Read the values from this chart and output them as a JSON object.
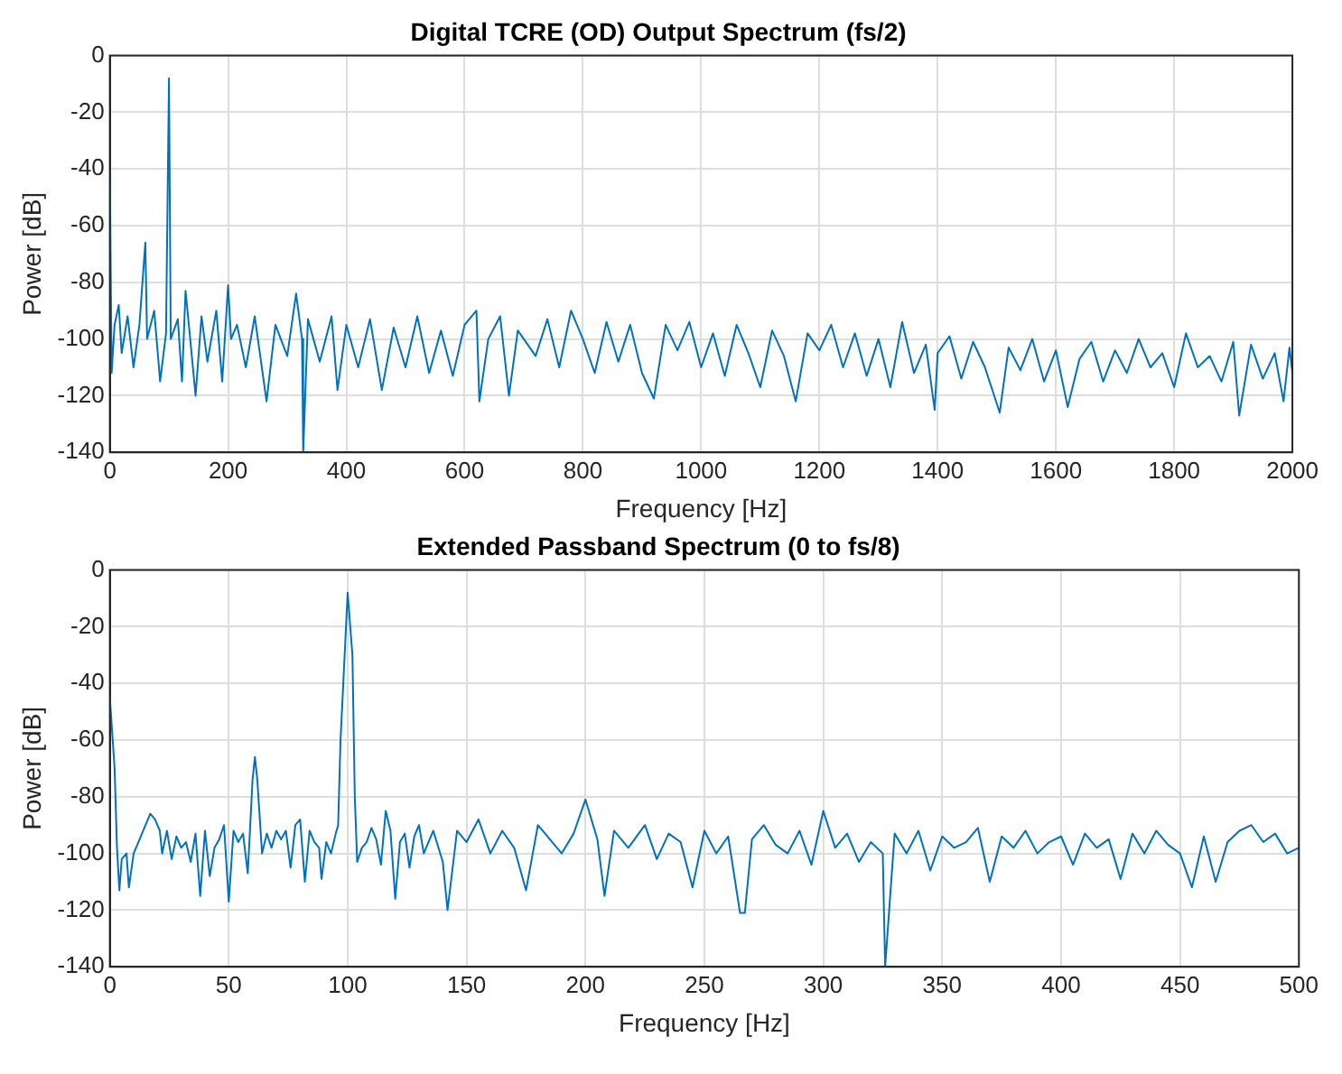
{
  "chart_data": [
    {
      "type": "line",
      "title": "Digital TCRE (OD) Output Spectrum (fs/2)",
      "xlabel": "Frequency [Hz]",
      "ylabel": "Power [dB]",
      "xlim": [
        0,
        2000
      ],
      "ylim": [
        -140,
        0
      ],
      "xticks": [
        0,
        200,
        400,
        600,
        800,
        1000,
        1200,
        1400,
        1600,
        1800,
        2000
      ],
      "yticks": [
        -140,
        -120,
        -100,
        -80,
        -60,
        -40,
        -20,
        0
      ],
      "grid": true,
      "legend": false,
      "marker": "none",
      "line_style": "solid",
      "x": [
        0,
        3,
        8,
        15,
        20,
        30,
        40,
        50,
        60,
        63,
        75,
        85,
        95,
        100,
        103,
        115,
        122,
        128,
        135,
        145,
        155,
        165,
        180,
        190,
        200,
        205,
        215,
        230,
        245,
        265,
        280,
        300,
        315,
        325,
        327,
        335,
        355,
        375,
        385,
        400,
        420,
        440,
        460,
        480,
        500,
        520,
        540,
        560,
        580,
        600,
        620,
        625,
        640,
        660,
        675,
        690,
        720,
        740,
        760,
        780,
        800,
        820,
        840,
        860,
        880,
        900,
        920,
        940,
        960,
        980,
        1000,
        1020,
        1040,
        1060,
        1080,
        1100,
        1120,
        1140,
        1160,
        1180,
        1200,
        1220,
        1240,
        1260,
        1280,
        1300,
        1320,
        1340,
        1360,
        1380,
        1395,
        1400,
        1420,
        1440,
        1460,
        1480,
        1505,
        1520,
        1540,
        1560,
        1580,
        1600,
        1620,
        1640,
        1660,
        1680,
        1700,
        1720,
        1740,
        1760,
        1780,
        1800,
        1820,
        1840,
        1860,
        1880,
        1900,
        1910,
        1930,
        1950,
        1970,
        1985,
        1995,
        2000
      ],
      "series": [
        {
          "color": "#0072bd",
          "values": [
            -40,
            -112,
            -95,
            -88,
            -105,
            -92,
            -110,
            -95,
            -66,
            -100,
            -90,
            -115,
            -98,
            -8,
            -100,
            -93,
            -115,
            -83,
            -98,
            -120,
            -92,
            -108,
            -90,
            -115,
            -81,
            -100,
            -95,
            -110,
            -92,
            -122,
            -95,
            -106,
            -84,
            -100,
            -140,
            -93,
            -108,
            -92,
            -118,
            -95,
            -110,
            -93,
            -118,
            -96,
            -110,
            -92,
            -112,
            -97,
            -113,
            -95,
            -90,
            -122,
            -100,
            -92,
            -120,
            -97,
            -106,
            -93,
            -110,
            -90,
            -100,
            -112,
            -94,
            -108,
            -95,
            -112,
            -121,
            -95,
            -104,
            -94,
            -110,
            -98,
            -113,
            -95,
            -105,
            -117,
            -97,
            -106,
            -122,
            -98,
            -104,
            -95,
            -110,
            -98,
            -113,
            -100,
            -117,
            -94,
            -112,
            -102,
            -125,
            -105,
            -99,
            -114,
            -101,
            -110,
            -126,
            -103,
            -111,
            -100,
            -115,
            -104,
            -124,
            -107,
            -101,
            -115,
            -104,
            -112,
            -100,
            -110,
            -105,
            -117,
            -98,
            -110,
            -106,
            -115,
            -101,
            -127,
            -102,
            -114,
            -105,
            -122,
            -103,
            -112
          ]
        }
      ]
    },
    {
      "type": "line",
      "title": "Extended Passband Spectrum (0 to fs/8)",
      "xlabel": "Frequency [Hz]",
      "ylabel": "Power [dB]",
      "xlim": [
        0,
        500
      ],
      "ylim": [
        -140,
        0
      ],
      "xticks": [
        0,
        50,
        100,
        150,
        200,
        250,
        300,
        350,
        400,
        450,
        500
      ],
      "yticks": [
        -140,
        -120,
        -100,
        -80,
        -60,
        -40,
        -20,
        0
      ],
      "grid": true,
      "legend": false,
      "marker": "none",
      "line_style": "solid",
      "x": [
        0,
        2,
        3,
        4,
        5,
        7,
        8,
        10,
        12,
        15,
        17,
        19,
        21,
        22,
        24,
        26,
        28,
        30,
        32,
        34,
        36,
        38,
        40,
        42,
        44,
        46,
        48,
        50,
        52,
        54,
        56,
        58,
        60,
        61,
        62,
        64,
        66,
        68,
        70,
        72,
        74,
        76,
        78,
        80,
        82,
        84,
        86,
        88,
        89,
        91,
        93,
        95,
        96,
        97,
        100,
        102,
        103,
        104,
        106,
        108,
        110,
        112,
        114,
        116,
        118,
        120,
        122,
        124,
        126,
        128,
        130,
        132,
        136,
        140,
        142,
        146,
        150,
        155,
        160,
        165,
        170,
        175,
        180,
        185,
        190,
        195,
        200,
        205,
        208,
        212,
        218,
        225,
        230,
        235,
        240,
        245,
        250,
        255,
        260,
        265,
        267,
        270,
        275,
        280,
        285,
        290,
        295,
        300,
        305,
        310,
        315,
        320,
        325,
        326,
        330,
        335,
        340,
        345,
        350,
        355,
        360,
        365,
        370,
        375,
        380,
        385,
        390,
        395,
        400,
        405,
        410,
        415,
        420,
        425,
        430,
        435,
        440,
        445,
        450,
        455,
        460,
        465,
        470,
        475,
        480,
        485,
        490,
        495,
        500
      ],
      "series": [
        {
          "color": "#0072bd",
          "values": [
            -45,
            -70,
            -98,
            -113,
            -102,
            -100,
            -112,
            -100,
            -96,
            -90,
            -86,
            -88,
            -92,
            -100,
            -92,
            -102,
            -94,
            -98,
            -96,
            -103,
            -93,
            -115,
            -92,
            -108,
            -98,
            -95,
            -90,
            -117,
            -92,
            -96,
            -93,
            -107,
            -74,
            -66,
            -74,
            -100,
            -93,
            -98,
            -92,
            -95,
            -92,
            -105,
            -90,
            -88,
            -110,
            -92,
            -96,
            -98,
            -109,
            -96,
            -100,
            -93,
            -90,
            -60,
            -8,
            -30,
            -80,
            -103,
            -98,
            -96,
            -91,
            -95,
            -104,
            -85,
            -92,
            -116,
            -96,
            -93,
            -105,
            -94,
            -90,
            -100,
            -92,
            -103,
            -120,
            -92,
            -96,
            -88,
            -100,
            -92,
            -98,
            -113,
            -90,
            -95,
            -100,
            -93,
            -81,
            -95,
            -115,
            -92,
            -98,
            -90,
            -102,
            -93,
            -96,
            -112,
            -92,
            -100,
            -94,
            -121,
            -121,
            -95,
            -90,
            -97,
            -100,
            -92,
            -104,
            -85,
            -98,
            -93,
            -103,
            -96,
            -100,
            -140,
            -93,
            -100,
            -92,
            -106,
            -94,
            -98,
            -96,
            -91,
            -110,
            -94,
            -98,
            -92,
            -100,
            -96,
            -94,
            -104,
            -93,
            -98,
            -95,
            -109,
            -93,
            -100,
            -92,
            -97,
            -100,
            -112,
            -94,
            -110,
            -96,
            -92,
            -90,
            -96,
            -93,
            -100,
            -98
          ]
        }
      ]
    }
  ]
}
